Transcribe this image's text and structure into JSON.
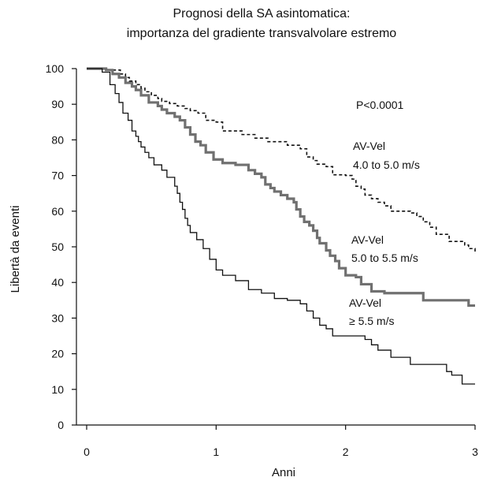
{
  "chart_data": {
    "type": "line",
    "title": "Prognosi della SA asintomatica:",
    "subtitle": "importanza del gradiente transvalvolare estremo",
    "xlabel": "Anni",
    "ylabel": "Libertà da eventi",
    "xlim": [
      0,
      3
    ],
    "ylim": [
      0,
      100
    ],
    "x_ticks": [
      "0",
      "1",
      "2",
      "3"
    ],
    "y_ticks": [
      "0",
      "10",
      "20",
      "30",
      "40",
      "50",
      "60",
      "70",
      "80",
      "90",
      "100"
    ],
    "grid": false,
    "annotations": {
      "p_value": "P<0.0001",
      "s1_line1": "AV-Vel",
      "s1_line2": "4.0 to 5.0 m/s",
      "s2_line1": "AV-Vel",
      "s2_line2": "5.0 to 5.5 m/s",
      "s3_line1": "AV-Vel",
      "s3_line2": "≥ 5.5 m/s"
    },
    "series": [
      {
        "key": "s1",
        "style": "dashed",
        "color": "#111111",
        "x": [
          0,
          0.15,
          0.26,
          0.3,
          0.33,
          0.38,
          0.42,
          0.45,
          0.5,
          0.55,
          0.58,
          0.64,
          0.7,
          0.76,
          0.8,
          0.86,
          0.92,
          1.0,
          1.05,
          1.15,
          1.2,
          1.3,
          1.4,
          1.5,
          1.55,
          1.6,
          1.65,
          1.7,
          1.75,
          1.78,
          1.85,
          1.9,
          2.0,
          2.05,
          2.08,
          2.12,
          2.15,
          2.2,
          2.25,
          2.3,
          2.35,
          2.4,
          2.5,
          2.55,
          2.6,
          2.65,
          2.7,
          2.8,
          2.88,
          2.92,
          2.95,
          3.0
        ],
        "y": [
          100,
          99.6,
          98.5,
          97.5,
          96.5,
          95.5,
          94.5,
          93.5,
          92.5,
          91.6,
          90.8,
          90.2,
          89.5,
          88.8,
          88.2,
          87.5,
          85.5,
          85,
          82.5,
          82.5,
          81.5,
          80.5,
          79.5,
          79.5,
          78.5,
          78.5,
          77.5,
          75.2,
          74.2,
          73.2,
          72.5,
          70.2,
          70,
          69,
          67,
          66.2,
          64.5,
          63.5,
          62.5,
          61.5,
          60,
          60,
          59.5,
          58.5,
          57,
          55.5,
          53.5,
          51.5,
          51.5,
          50.5,
          49.5,
          48.5
        ]
      },
      {
        "key": "s2",
        "style": "thick-gray",
        "color": "#707070",
        "x": [
          0,
          0.15,
          0.2,
          0.25,
          0.3,
          0.35,
          0.38,
          0.42,
          0.48,
          0.55,
          0.58,
          0.62,
          0.68,
          0.72,
          0.76,
          0.8,
          0.84,
          0.88,
          0.92,
          0.98,
          1.05,
          1.15,
          1.25,
          1.3,
          1.35,
          1.38,
          1.42,
          1.45,
          1.5,
          1.55,
          1.6,
          1.62,
          1.65,
          1.68,
          1.72,
          1.75,
          1.78,
          1.8,
          1.85,
          1.88,
          1.92,
          1.95,
          2.0,
          2.08,
          2.12,
          2.2,
          2.3,
          2.4,
          2.5,
          2.6,
          2.7,
          2.85,
          2.95,
          3.0
        ],
        "y": [
          100,
          99.6,
          98.5,
          97.5,
          96,
          95,
          94,
          92.5,
          90.5,
          89.5,
          88.5,
          87.5,
          86.5,
          85.5,
          83.5,
          81.5,
          79.5,
          78.5,
          76.5,
          74.5,
          73.5,
          73,
          71.5,
          70.5,
          69.5,
          67.5,
          66.5,
          65.5,
          64.5,
          63.5,
          62.5,
          60.5,
          58.5,
          57,
          56,
          54.5,
          52.5,
          51,
          49,
          47.5,
          46,
          44,
          42,
          41.5,
          39.5,
          37.5,
          37,
          37,
          37,
          35,
          35,
          35,
          33.5,
          33.5
        ]
      },
      {
        "key": "s3",
        "style": "thin",
        "color": "#111111",
        "x": [
          0,
          0.12,
          0.18,
          0.22,
          0.25,
          0.28,
          0.32,
          0.35,
          0.38,
          0.4,
          0.42,
          0.45,
          0.48,
          0.52,
          0.58,
          0.62,
          0.68,
          0.7,
          0.72,
          0.74,
          0.76,
          0.78,
          0.8,
          0.85,
          0.9,
          0.95,
          1.0,
          1.05,
          1.15,
          1.25,
          1.35,
          1.45,
          1.55,
          1.6,
          1.65,
          1.7,
          1.75,
          1.8,
          1.85,
          1.9,
          2.0,
          2.08,
          2.15,
          2.2,
          2.25,
          2.35,
          2.45,
          2.5,
          2.6,
          2.7,
          2.78,
          2.82,
          2.9,
          3.0
        ],
        "y": [
          100,
          99,
          95.5,
          93,
          90.5,
          87.5,
          85.5,
          82.5,
          81,
          79.5,
          78,
          76.5,
          75,
          73,
          71.5,
          69.5,
          67,
          65,
          62.5,
          60.5,
          58,
          56,
          54,
          52,
          49.5,
          46.5,
          43.5,
          42,
          40.5,
          38,
          37,
          35.5,
          35,
          35,
          34,
          32,
          30,
          28,
          27,
          25,
          25,
          25,
          24,
          22.5,
          21,
          19,
          19,
          17,
          17,
          17,
          15,
          14,
          11.5,
          11.5
        ]
      }
    ]
  }
}
